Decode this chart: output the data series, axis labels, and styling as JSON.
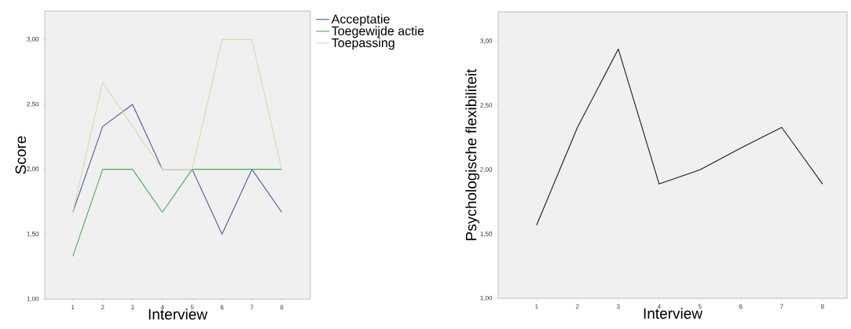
{
  "chart_data": [
    {
      "type": "line",
      "xlabel": "Interview",
      "ylabel": "Score",
      "x": [
        1,
        2,
        3,
        4,
        5,
        6,
        7,
        8
      ],
      "xlim": [
        0.06,
        8.96
      ],
      "ylim": [
        1,
        3.22
      ],
      "xticks": [
        1,
        2,
        3,
        4,
        5,
        6,
        7,
        8
      ],
      "yticks": [
        {
          "value": 1,
          "label": "1,00"
        },
        {
          "value": 1.5,
          "label": "1,50"
        },
        {
          "value": 2,
          "label": "2,00"
        },
        {
          "value": 2.5,
          "label": "2,50"
        },
        {
          "value": 3,
          "label": "3,00"
        }
      ],
      "legend": "right",
      "marker": "none",
      "line_style": "solid",
      "series": [
        {
          "name": "Acceptatie",
          "color": "#4a5aa8",
          "values": [
            1.67,
            2.33,
            2.5,
            2,
            2,
            1.5,
            2,
            1.67
          ]
        },
        {
          "name": "Toegewijde actie",
          "color": "#3fb356",
          "values": [
            1.33,
            2,
            2,
            1.67,
            2,
            2,
            2,
            2
          ]
        },
        {
          "name": "Toepassing",
          "color": "#e0d8aa",
          "values": [
            1.67,
            2.67,
            2.33,
            2,
            2,
            3,
            3,
            2
          ]
        }
      ]
    },
    {
      "type": "line",
      "xlabel": "Interview",
      "ylabel": "Psychologische flexibiliteit",
      "x": [
        1,
        2,
        3,
        4,
        5,
        6,
        7,
        8
      ],
      "xlim": [
        0.06,
        8.6
      ],
      "ylim": [
        1,
        3.23
      ],
      "xticks": [
        1,
        2,
        3,
        4,
        5,
        6,
        7,
        8
      ],
      "yticks": [
        {
          "value": 1,
          "label": "1,00"
        },
        {
          "value": 1.5,
          "label": "1,50"
        },
        {
          "value": 2,
          "label": "2,00"
        },
        {
          "value": 2.5,
          "label": "2,50"
        },
        {
          "value": 3,
          "label": "3,00"
        }
      ],
      "marker": "none",
      "line_style": "solid",
      "series": [
        {
          "color": "#1a1a1a",
          "values": [
            1.57,
            2.33,
            2.94,
            1.89,
            2,
            2.17,
            2.33,
            1.89
          ]
        }
      ]
    }
  ]
}
